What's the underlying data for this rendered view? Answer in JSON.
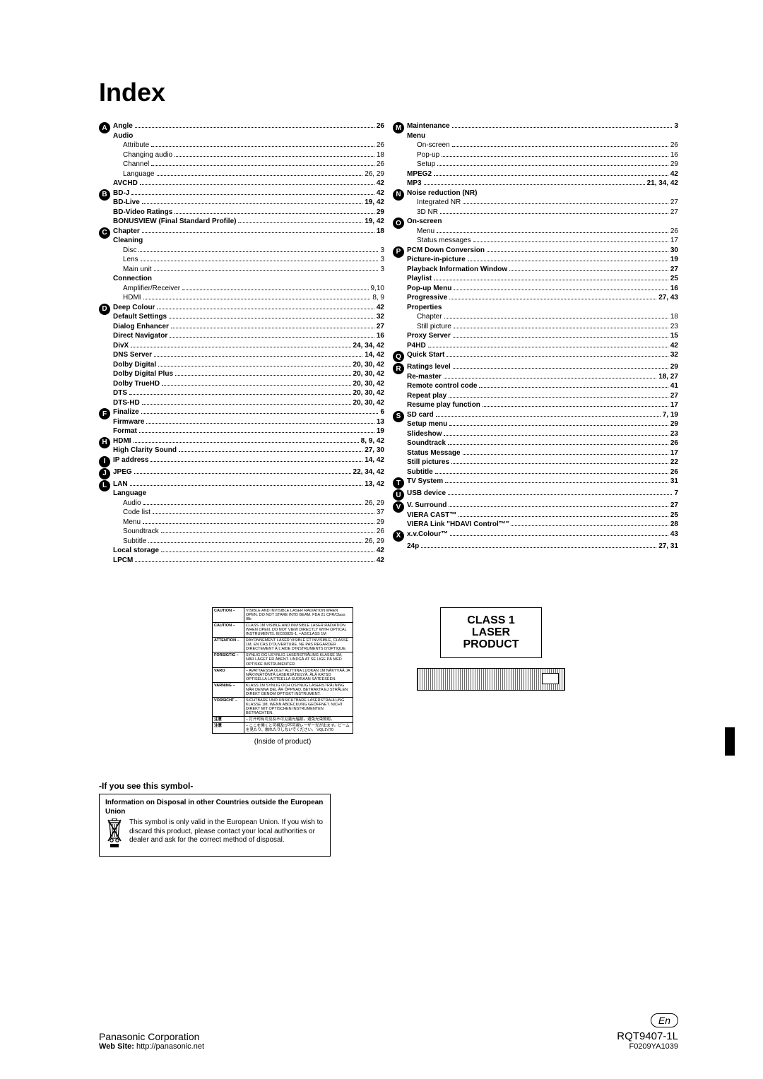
{
  "title": "Index",
  "left": [
    {
      "letter": "A",
      "entries": [
        {
          "label": "Angle",
          "page": "26",
          "bold": true
        },
        {
          "label": "Audio",
          "bold": true,
          "nopage": true
        },
        {
          "label": "Attribute",
          "page": "26",
          "sub": true
        },
        {
          "label": "Changing audio",
          "page": "18",
          "sub": true
        },
        {
          "label": "Channel",
          "page": "26",
          "sub": true
        },
        {
          "label": "Language",
          "page": "26, 29",
          "sub": true
        },
        {
          "label": "AVCHD",
          "page": "42",
          "bold": true
        }
      ]
    },
    {
      "letter": "B",
      "entries": [
        {
          "label": "BD-J",
          "page": "42",
          "bold": true
        },
        {
          "label": "BD-Live",
          "page": "19, 42",
          "bold": true
        },
        {
          "label": "BD-Video Ratings",
          "page": "29",
          "bold": true
        },
        {
          "label": "BONUSVIEW (Final Standard Profile)",
          "page": "19, 42",
          "bold": true
        }
      ]
    },
    {
      "letter": "C",
      "entries": [
        {
          "label": "Chapter",
          "page": "18",
          "bold": true
        },
        {
          "label": "Cleaning",
          "bold": true,
          "nopage": true
        },
        {
          "label": "Disc",
          "page": "3",
          "sub": true
        },
        {
          "label": "Lens",
          "page": "3",
          "sub": true
        },
        {
          "label": "Main unit",
          "page": "3",
          "sub": true
        },
        {
          "label": "Connection",
          "bold": true,
          "nopage": true
        },
        {
          "label": "Amplifier/Receiver",
          "page": "9,10",
          "sub": true
        },
        {
          "label": "HDMI",
          "page": "8, 9",
          "sub": true
        }
      ]
    },
    {
      "letter": "D",
      "entries": [
        {
          "label": "Deep Colour",
          "page": "42",
          "bold": true
        },
        {
          "label": "Default Settings",
          "page": "32",
          "bold": true
        },
        {
          "label": "Dialog Enhancer",
          "page": "27",
          "bold": true
        },
        {
          "label": "Direct Navigator",
          "page": "16",
          "bold": true
        },
        {
          "label": "DivX",
          "page": "24, 34, 42",
          "bold": true
        },
        {
          "label": "DNS Server",
          "page": "14, 42",
          "bold": true
        },
        {
          "label": "Dolby Digital",
          "page": "20, 30, 42",
          "bold": true
        },
        {
          "label": "Dolby Digital Plus",
          "page": "20, 30, 42",
          "bold": true
        },
        {
          "label": "Dolby TrueHD",
          "page": "20, 30, 42",
          "bold": true
        },
        {
          "label": "DTS",
          "page": "20, 30, 42",
          "bold": true
        },
        {
          "label": "DTS-HD",
          "page": "20, 30, 42",
          "bold": true
        }
      ]
    },
    {
      "letter": "F",
      "entries": [
        {
          "label": "Finalize",
          "page": "6",
          "bold": true
        },
        {
          "label": "Firmware",
          "page": "13",
          "bold": true
        },
        {
          "label": "Format",
          "page": "19",
          "bold": true
        }
      ]
    },
    {
      "letter": "H",
      "entries": [
        {
          "label": "HDMI",
          "page": "8, 9, 42",
          "bold": true
        },
        {
          "label": "High Clarity Sound",
          "page": "27, 30",
          "bold": true
        }
      ]
    },
    {
      "letter": "I",
      "entries": [
        {
          "label": "IP address",
          "page": "14, 42",
          "bold": true
        }
      ]
    },
    {
      "letter": "J",
      "entries": [
        {
          "label": "JPEG",
          "page": "22, 34, 42",
          "bold": true
        }
      ]
    },
    {
      "letter": "L",
      "entries": [
        {
          "label": "LAN",
          "page": "13, 42",
          "bold": true
        },
        {
          "label": "Language",
          "bold": true,
          "nopage": true
        },
        {
          "label": "Audio",
          "page": "26, 29",
          "sub": true
        },
        {
          "label": "Code list",
          "page": "37",
          "sub": true
        },
        {
          "label": "Menu",
          "page": "29",
          "sub": true
        },
        {
          "label": "Soundtrack",
          "page": "26",
          "sub": true
        },
        {
          "label": "Subtitle",
          "page": "26, 29",
          "sub": true
        },
        {
          "label": "Local storage",
          "page": "42",
          "bold": true
        },
        {
          "label": "LPCM",
          "page": "42",
          "bold": true
        }
      ]
    }
  ],
  "right": [
    {
      "letter": "M",
      "entries": [
        {
          "label": "Maintenance",
          "page": "3",
          "bold": true
        },
        {
          "label": "Menu",
          "bold": true,
          "nopage": true
        },
        {
          "label": "On-screen",
          "page": "26",
          "sub": true
        },
        {
          "label": "Pop-up",
          "page": "16",
          "sub": true
        },
        {
          "label": "Setup",
          "page": "29",
          "sub": true
        },
        {
          "label": "MPEG2",
          "page": "42",
          "bold": true
        },
        {
          "label": "MP3",
          "page": "21, 34, 42",
          "bold": true
        }
      ]
    },
    {
      "letter": "N",
      "entries": [
        {
          "label": "Noise reduction (NR)",
          "bold": true,
          "nopage": true
        },
        {
          "label": "Integrated NR",
          "page": "27",
          "sub": true
        },
        {
          "label": "3D NR",
          "page": "27",
          "sub": true
        }
      ]
    },
    {
      "letter": "O",
      "entries": [
        {
          "label": "On-screen",
          "bold": true,
          "nopage": true
        },
        {
          "label": "Menu",
          "page": "26",
          "sub": true
        },
        {
          "label": "Status messages",
          "page": "17",
          "sub": true
        }
      ]
    },
    {
      "letter": "P",
      "entries": [
        {
          "label": "PCM Down Conversion",
          "page": "30",
          "bold": true
        },
        {
          "label": "Picture-in-picture",
          "page": "19",
          "bold": true
        },
        {
          "label": "Playback Information Window",
          "page": "27",
          "bold": true
        },
        {
          "label": "Playlist",
          "page": "25",
          "bold": true
        },
        {
          "label": "Pop-up Menu",
          "page": "16",
          "bold": true
        },
        {
          "label": "Progressive",
          "page": "27, 43",
          "bold": true
        },
        {
          "label": "Properties",
          "bold": true,
          "nopage": true
        },
        {
          "label": "Chapter",
          "page": "18",
          "sub": true
        },
        {
          "label": "Still picture",
          "page": "23",
          "sub": true
        },
        {
          "label": "Proxy Server",
          "page": "15",
          "bold": true
        },
        {
          "label": "P4HD",
          "page": "42",
          "bold": true
        }
      ]
    },
    {
      "letter": "Q",
      "entries": [
        {
          "label": "Quick Start",
          "page": "32",
          "bold": true
        }
      ]
    },
    {
      "letter": "R",
      "entries": [
        {
          "label": "Ratings level",
          "page": "29",
          "bold": true
        },
        {
          "label": "Re-master",
          "page": "18, 27",
          "bold": true
        },
        {
          "label": "Remote control code",
          "page": "41",
          "bold": true
        },
        {
          "label": "Repeat play",
          "page": "27",
          "bold": true
        },
        {
          "label": "Resume play function",
          "page": "17",
          "bold": true
        }
      ]
    },
    {
      "letter": "S",
      "entries": [
        {
          "label": "SD card",
          "page": "7, 19",
          "bold": true
        },
        {
          "label": "Setup menu",
          "page": "29",
          "bold": true
        },
        {
          "label": "Slideshow",
          "page": "23",
          "bold": true
        },
        {
          "label": "Soundtrack",
          "page": "26",
          "bold": true
        },
        {
          "label": "Status Message",
          "page": "17",
          "bold": true
        },
        {
          "label": "Still pictures",
          "page": "22",
          "bold": true
        },
        {
          "label": "Subtitle",
          "page": "26",
          "bold": true
        }
      ]
    },
    {
      "letter": "T",
      "entries": [
        {
          "label": "TV System",
          "page": "31",
          "bold": true
        }
      ]
    },
    {
      "letter": "U",
      "entries": [
        {
          "label": "USB device",
          "page": "7",
          "bold": true
        }
      ]
    },
    {
      "letter": "V",
      "entries": [
        {
          "label": "V. Surround",
          "page": "27",
          "bold": true
        },
        {
          "label": "VIERA CAST™",
          "page": "25",
          "bold": true
        },
        {
          "label": "VIERA Link \"HDAVI Control™\"",
          "page": "28",
          "bold": true
        }
      ]
    },
    {
      "letter": "X",
      "entries": [
        {
          "label": "x.v.Colour™",
          "page": "43",
          "bold": true
        }
      ]
    },
    {
      "letter": "",
      "entries": [
        {
          "label": "24p",
          "page": "27, 31",
          "bold": true
        }
      ]
    }
  ],
  "caution_rows": [
    {
      "lbl": "CAUTION –",
      "txt": "VISIBLE AND INVISIBLE LASER RADIATION WHEN OPEN. DO NOT STARE INTO BEAM.        FDA 21 CFR/Class IIIb"
    },
    {
      "lbl": "CAUTION –",
      "txt": "CLASS 1M VISIBLE AND INVISIBLE LASER RADIATION WHEN OPEN. DO NOT VIEW DIRECTLY WITH OPTICAL INSTRUMENTS.  IEC60825-1, +A2/CLASS 1M"
    },
    {
      "lbl": "ATTENTION –",
      "txt": "RAYONNEMENT LASER VISIBLE ET INVISIBLE, CLASSE 1M, EN CAS D'OUVERTURE. NE PAS REGARDER DIRECTEMENT À L'AIDE D'INSTRUMENTS D'OPTIQUE."
    },
    {
      "lbl": "FORSIGTIG –",
      "txt": "SYNLIG OG USYNLIG LASERSTRÅLING KLASSE 1M, NÅR LÅGET ER ÅBENT. UNDGÅ AT SE LIGE PÅ MED OPTISKE INSTRUMENTER."
    },
    {
      "lbl": "VARO",
      "txt": "– AVATTAESSA OLET ALTTIINA LUOKAN 1M NÄKYVÄÄ JA NÄKYMÄTÖNTÄ LASERSÄTEILYÄ. ÄLÄ KATSO OPTISELLA LAITTEELLA SUORAAN SÄTEESEEN."
    },
    {
      "lbl": "VARNING –",
      "txt": "KLASS 1M SYNLIG OCH OSYNLIG LASERSTRÅLNING NÄR DENNA DEL ÄR ÖPPNAD. BETRAKTA EJ STRÅLEN DIREKT GENOM OPTISKT INSTRUMENT."
    },
    {
      "lbl": "VORSICHT –",
      "txt": "SICHTBARE UND UNSICHTBARE LASERSTRAHLUNG KLASSE 1M, WENN ABDECKUNG GEÖFFNET. NICHT DIREKT MIT OPTISCHEN INSTRUMENTEN BETRACHTEN."
    },
    {
      "lbl": "注意",
      "txt": "– 打开时有可见及不可见激光辐射。避免光束照射。"
    },
    {
      "lbl": "注意",
      "txt": "– ここを開くと可視及び不可視レーザー光が出ます。ビームを見たり、触れたりしないでください。           VQL1V70"
    }
  ],
  "inside_caption": "(Inside of product)",
  "class1_line1": "CLASS 1",
  "class1_line2": "LASER PRODUCT",
  "symbol_heading": "-If you see this symbol-",
  "symbol_title": "Information on Disposal in other Countries outside the European Union",
  "symbol_text": "This symbol is only valid in the European Union. If you wish to discard this product, please contact your local authorities or dealer and ask for the correct method of disposal.",
  "footer": {
    "corp": "Panasonic Corporation",
    "site_label": "Web Site:",
    "site_url": "http://panasonic.net",
    "en": "En",
    "code1": "RQT9407-1L",
    "code2": "F0209YA1039"
  }
}
